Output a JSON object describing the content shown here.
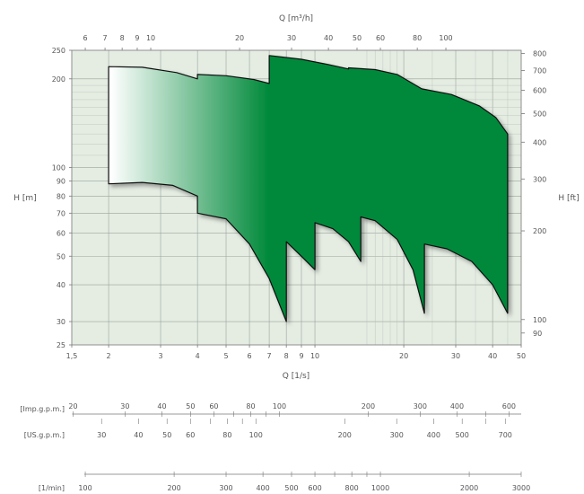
{
  "chart_data": {
    "type": "area",
    "title": "",
    "xlabel": "Q [1/s]",
    "x2label": "Q [m³/h]",
    "ylabel": "H [m]",
    "y2label": "H [ft]",
    "xscale": "log",
    "yscale": "log",
    "xlim": [
      1.5,
      50
    ],
    "ylim": [
      25,
      250
    ],
    "grid": true,
    "gradient_colors": [
      "#ffffff",
      "#00893a"
    ],
    "x_ticks": [
      "1,5",
      "2",
      "3",
      "4",
      "5",
      "6",
      "7",
      "8",
      "9",
      "10",
      "20",
      "30",
      "40",
      "50"
    ],
    "x_tick_values": [
      1.5,
      2,
      3,
      4,
      5,
      6,
      7,
      8,
      9,
      10,
      20,
      30,
      40,
      50
    ],
    "y_ticks": [
      "25",
      "30",
      "40",
      "50",
      "60",
      "70",
      "80",
      "90",
      "100",
      "200",
      "250"
    ],
    "y_tick_values": [
      25,
      30,
      40,
      50,
      60,
      70,
      80,
      90,
      100,
      200,
      250
    ],
    "x2_ticks": [
      "6",
      "7",
      "8",
      "9",
      "10",
      "20",
      "30",
      "40",
      "50",
      "60",
      "80",
      "100"
    ],
    "x2_tick_values": [
      6,
      7,
      8,
      9,
      10,
      20,
      30,
      40,
      50,
      60,
      80,
      100
    ],
    "y2_ticks": [
      "90",
      "100",
      "200",
      "300",
      "400",
      "500",
      "600",
      "700",
      "800"
    ],
    "y2_tick_values": [
      90,
      100,
      200,
      300,
      400,
      500,
      600,
      700,
      800
    ],
    "top_envelope": [
      {
        "x": 2.0,
        "y": 220
      },
      {
        "x": 2.6,
        "y": 219
      },
      {
        "x": 3.4,
        "y": 210
      },
      {
        "x": 4.0,
        "y": 200
      },
      {
        "x": 4.0,
        "y": 207
      },
      {
        "x": 5.0,
        "y": 205
      },
      {
        "x": 6.2,
        "y": 199
      },
      {
        "x": 7.0,
        "y": 193
      },
      {
        "x": 7.0,
        "y": 240
      },
      {
        "x": 9.0,
        "y": 233
      },
      {
        "x": 11.0,
        "y": 224
      },
      {
        "x": 13.0,
        "y": 216
      },
      {
        "x": 13.0,
        "y": 218
      },
      {
        "x": 16.0,
        "y": 215
      },
      {
        "x": 19.0,
        "y": 207
      },
      {
        "x": 23.0,
        "y": 185
      },
      {
        "x": 29.0,
        "y": 177
      },
      {
        "x": 36.0,
        "y": 162
      },
      {
        "x": 41.0,
        "y": 148
      },
      {
        "x": 45.0,
        "y": 130
      }
    ],
    "bottom_envelope": [
      {
        "x": 2.0,
        "y": 88
      },
      {
        "x": 2.6,
        "y": 89
      },
      {
        "x": 3.3,
        "y": 87
      },
      {
        "x": 4.0,
        "y": 80
      },
      {
        "x": 4.0,
        "y": 70
      },
      {
        "x": 5.0,
        "y": 67
      },
      {
        "x": 6.0,
        "y": 55
      },
      {
        "x": 7.0,
        "y": 42
      },
      {
        "x": 8.0,
        "y": 30
      },
      {
        "x": 8.0,
        "y": 56
      },
      {
        "x": 9.0,
        "y": 50
      },
      {
        "x": 10.0,
        "y": 45
      },
      {
        "x": 10.0,
        "y": 65
      },
      {
        "x": 11.5,
        "y": 62
      },
      {
        "x": 13.0,
        "y": 56
      },
      {
        "x": 14.3,
        "y": 48
      },
      {
        "x": 14.3,
        "y": 68
      },
      {
        "x": 16.0,
        "y": 66
      },
      {
        "x": 19.0,
        "y": 57
      },
      {
        "x": 21.5,
        "y": 45
      },
      {
        "x": 23.5,
        "y": 32
      },
      {
        "x": 23.5,
        "y": 55
      },
      {
        "x": 28.0,
        "y": 53
      },
      {
        "x": 34.0,
        "y": 48
      },
      {
        "x": 40.0,
        "y": 40
      },
      {
        "x": 45.0,
        "y": 32
      }
    ],
    "flow_scales": [
      {
        "label": "[Imp.g.p.m.]",
        "ticks": [
          "20",
          "30",
          "40",
          "50",
          "60",
          "80",
          "100",
          "200",
          "300",
          "400",
          "600"
        ],
        "values": [
          20,
          30,
          40,
          50,
          60,
          80,
          100,
          200,
          300,
          400,
          600
        ],
        "factor": 13.198,
        "label_side": "top"
      },
      {
        "label": "[US.g.p.m.]",
        "ticks": [
          "30",
          "40",
          "50",
          "60",
          "80",
          "100",
          "200",
          "300",
          "400",
          "500",
          "700"
        ],
        "values": [
          30,
          40,
          50,
          60,
          80,
          100,
          200,
          300,
          400,
          500,
          700
        ],
        "factor": 15.85,
        "label_side": "bottom"
      },
      {
        "label": "[1/min]",
        "ticks": [
          "100",
          "200",
          "300",
          "400",
          "500",
          "600",
          "800",
          "1000",
          "2000",
          "3000"
        ],
        "values": [
          100,
          200,
          300,
          400,
          500,
          600,
          800,
          1000,
          2000,
          3000
        ],
        "factor": 60,
        "label_side": "bottom"
      }
    ]
  }
}
